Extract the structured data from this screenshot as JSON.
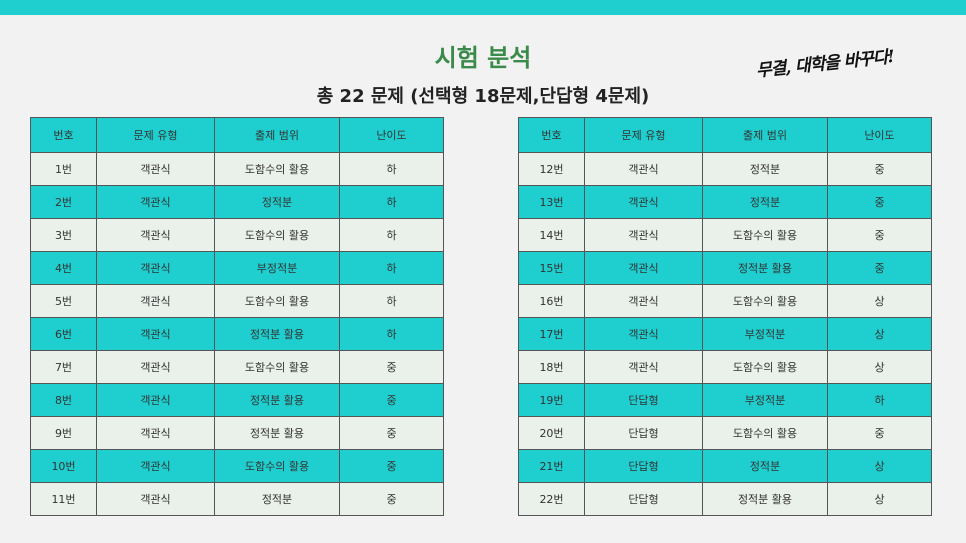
{
  "title": "시험 분석",
  "subtitle": "총 22 문제 (선택형 18문제,단답형 4문제)",
  "slogan": "무결, 대학을 바꾸다!",
  "columns": [
    "번호",
    "문제 유형",
    "출제 범위",
    "난이도"
  ],
  "colors": {
    "accent": "#1fcfcf",
    "title": "#3a8a4a",
    "row_light": "#eaf0ea"
  },
  "left_rows": [
    [
      "1번",
      "객관식",
      "도함수의 활용",
      "하"
    ],
    [
      "2번",
      "객관식",
      "정적분",
      "하"
    ],
    [
      "3번",
      "객관식",
      "도함수의 활용",
      "하"
    ],
    [
      "4번",
      "객관식",
      "부정적분",
      "하"
    ],
    [
      "5번",
      "객관식",
      "도함수의 활용",
      "하"
    ],
    [
      "6번",
      "객관식",
      "정적분 활용",
      "하"
    ],
    [
      "7번",
      "객관식",
      "도함수의 활용",
      "중"
    ],
    [
      "8번",
      "객관식",
      "정적분 활용",
      "중"
    ],
    [
      "9번",
      "객관식",
      "정적분 활용",
      "중"
    ],
    [
      "10번",
      "객관식",
      "도함수의 활용",
      "중"
    ],
    [
      "11번",
      "객관식",
      "정적분",
      "중"
    ]
  ],
  "right_rows": [
    [
      "12번",
      "객관식",
      "정적분",
      "중"
    ],
    [
      "13번",
      "객관식",
      "정적분",
      "중"
    ],
    [
      "14번",
      "객관식",
      "도함수의 활용",
      "중"
    ],
    [
      "15번",
      "객관식",
      "정적분 활용",
      "중"
    ],
    [
      "16번",
      "객관식",
      "도함수의 활용",
      "상"
    ],
    [
      "17번",
      "객관식",
      "부정적분",
      "상"
    ],
    [
      "18번",
      "객관식",
      "도함수의 활용",
      "상"
    ],
    [
      "19번",
      "단답형",
      "부정적분",
      "하"
    ],
    [
      "20번",
      "단답형",
      "도함수의 활용",
      "중"
    ],
    [
      "21번",
      "단답형",
      "정적분",
      "상"
    ],
    [
      "22번",
      "단답형",
      "정적분 활용",
      "상"
    ]
  ]
}
